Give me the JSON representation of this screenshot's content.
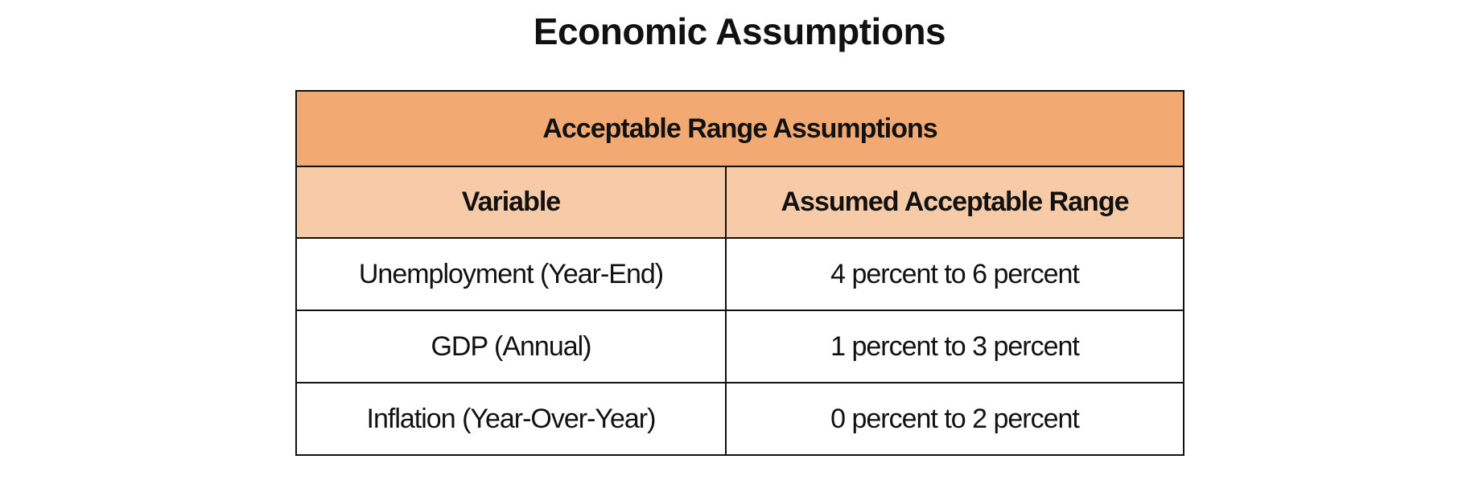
{
  "title": "Economic Assumptions",
  "table": {
    "caption": "Acceptable Range Assumptions",
    "headers": [
      "Variable",
      "Assumed Acceptable Range"
    ],
    "rows": [
      [
        "Unemployment (Year-End)",
        "4 percent to 6 percent"
      ],
      [
        "GDP (Annual)",
        "1 percent to 3 percent"
      ],
      [
        "Inflation (Year-Over-Year)",
        "0 percent to 2 percent"
      ]
    ]
  }
}
